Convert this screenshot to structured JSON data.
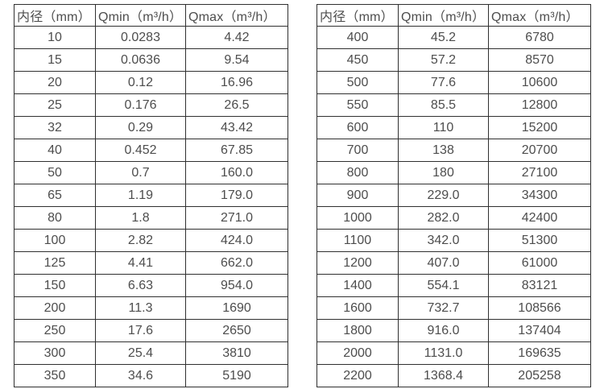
{
  "colors": {
    "background": "#ffffff",
    "border": "#303030",
    "text": "#4d4d4d"
  },
  "headers": {
    "diameter": "内径（mm）",
    "qmin": "Qmin（m³/h）",
    "qmax": "Qmax（m³/h）"
  },
  "tables": {
    "left": {
      "rows": [
        [
          "10",
          "0.0283",
          "4.42"
        ],
        [
          "15",
          "0.0636",
          "9.54"
        ],
        [
          "20",
          "0.12",
          "16.96"
        ],
        [
          "25",
          "0.176",
          "26.5"
        ],
        [
          "32",
          "0.29",
          "43.42"
        ],
        [
          "40",
          "0.452",
          "67.85"
        ],
        [
          "50",
          "0.7",
          "160.0"
        ],
        [
          "65",
          "1.19",
          "179.0"
        ],
        [
          "80",
          "1.8",
          "271.0"
        ],
        [
          "100",
          "2.82",
          "424.0"
        ],
        [
          "125",
          "4.41",
          "662.0"
        ],
        [
          "150",
          "6.63",
          "954.0"
        ],
        [
          "200",
          "11.3",
          "1690"
        ],
        [
          "250",
          "17.6",
          "2650"
        ],
        [
          "300",
          "25.4",
          "3810"
        ],
        [
          "350",
          "34.6",
          "5190"
        ]
      ]
    },
    "right": {
      "rows": [
        [
          "400",
          "45.2",
          "6780"
        ],
        [
          "450",
          "57.2",
          "8570"
        ],
        [
          "500",
          "77.6",
          "10600"
        ],
        [
          "550",
          "85.5",
          "12800"
        ],
        [
          "600",
          "110",
          "15200"
        ],
        [
          "700",
          "138",
          "20700"
        ],
        [
          "800",
          "180",
          "27100"
        ],
        [
          "900",
          "229.0",
          "34300"
        ],
        [
          "1000",
          "282.0",
          "42400"
        ],
        [
          "1100",
          "342.0",
          "51300"
        ],
        [
          "1200",
          "407.0",
          "61000"
        ],
        [
          "1400",
          "554.1",
          "83121"
        ],
        [
          "1600",
          "732.7",
          "108566"
        ],
        [
          "1800",
          "916.0",
          "137404"
        ],
        [
          "2000",
          "1131.0",
          "169635"
        ],
        [
          "2200",
          "1368.4",
          "205258"
        ]
      ]
    }
  }
}
